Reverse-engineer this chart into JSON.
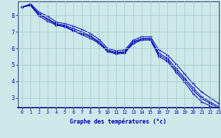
{
  "xlabel": "Graphe des températures (°c)",
  "background_color": "#cce8e8",
  "grid_color": "#aacccc",
  "line_color": "#0000bb",
  "xlim": [
    -0.5,
    23
  ],
  "ylim": [
    2.4,
    8.85
  ],
  "xticks": [
    0,
    1,
    2,
    3,
    4,
    5,
    6,
    7,
    8,
    9,
    10,
    11,
    12,
    13,
    14,
    15,
    16,
    17,
    18,
    19,
    20,
    21,
    22,
    23
  ],
  "yticks": [
    3,
    4,
    5,
    6,
    7,
    8
  ],
  "line1": [
    8.5,
    8.7,
    8.2,
    7.95,
    7.6,
    7.5,
    7.35,
    7.15,
    6.9,
    6.55,
    6.0,
    5.85,
    5.9,
    6.5,
    6.7,
    6.7,
    5.9,
    5.6,
    5.05,
    4.45,
    3.85,
    3.35,
    3.0,
    2.65
  ],
  "line2": [
    8.5,
    8.65,
    8.1,
    7.8,
    7.5,
    7.4,
    7.2,
    7.0,
    6.75,
    6.4,
    5.9,
    5.75,
    5.8,
    6.4,
    6.6,
    6.6,
    5.7,
    5.4,
    4.8,
    4.2,
    3.6,
    3.05,
    2.75,
    2.45
  ],
  "line3": [
    8.5,
    8.65,
    8.05,
    7.75,
    7.45,
    7.35,
    7.1,
    6.9,
    6.7,
    6.35,
    5.85,
    5.72,
    5.75,
    6.35,
    6.55,
    6.55,
    5.6,
    5.3,
    4.65,
    4.1,
    3.45,
    2.95,
    2.65,
    2.35
  ],
  "line4": [
    8.5,
    8.6,
    7.95,
    7.65,
    7.4,
    7.3,
    7.05,
    6.82,
    6.6,
    6.3,
    5.8,
    5.65,
    5.7,
    6.28,
    6.5,
    6.5,
    5.5,
    5.2,
    4.55,
    3.95,
    3.25,
    2.75,
    2.5,
    2.2
  ]
}
